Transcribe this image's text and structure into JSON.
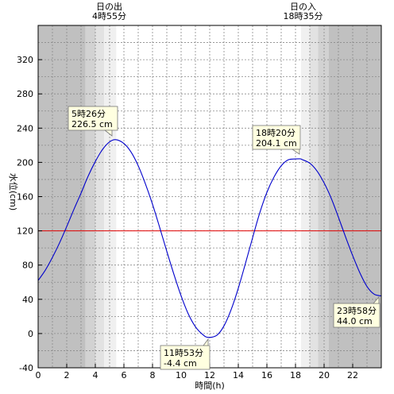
{
  "chart_data": {
    "type": "line",
    "xlabel": "時間(h)",
    "ylabel": "水位(cm)",
    "xlim": [
      0,
      24
    ],
    "ylim": [
      -40,
      360
    ],
    "xticks": [
      0,
      2,
      4,
      6,
      8,
      10,
      12,
      14,
      16,
      18,
      20,
      22
    ],
    "yticks": [
      -40,
      0,
      40,
      80,
      120,
      160,
      200,
      240,
      280,
      320
    ],
    "grid": true,
    "sunrise": {
      "label": "日の出",
      "time": "4時55分",
      "hour": 4.9167
    },
    "sunset": {
      "label": "日の入",
      "time": "18時35分",
      "hour": 18.5833
    },
    "reference_line": {
      "y": 120,
      "color": "#e00000"
    },
    "series": [
      {
        "color": "#0000cc",
        "x": [
          0,
          0.5,
          1,
          1.5,
          2,
          2.5,
          3,
          3.5,
          4,
          4.5,
          5,
          5.43,
          6,
          6.5,
          7,
          7.5,
          8,
          8.5,
          9,
          9.5,
          10,
          10.5,
          11,
          11.5,
          11.88,
          12.5,
          13,
          13.5,
          14,
          14.5,
          15,
          15.5,
          16,
          16.5,
          17,
          17.5,
          18,
          18.33,
          18.5,
          19,
          19.5,
          20,
          20.5,
          21,
          21.5,
          22,
          22.5,
          23,
          23.5,
          24
        ],
        "y": [
          62,
          74,
          89,
          106,
          125,
          145,
          164,
          184,
          201,
          215,
          224,
          226.5,
          222,
          212,
          196,
          175,
          151,
          124,
          96,
          69,
          44,
          23,
          8,
          -1,
          -4.4,
          -2,
          9,
          28,
          53,
          82,
          112,
          141,
          165,
          183,
          196,
          203,
          204,
          204.1,
          203,
          199,
          190,
          176,
          158,
          136,
          113,
          91,
          71,
          55,
          46,
          44
        ]
      }
    ],
    "annotations": [
      {
        "time": "5時26分",
        "value": "226.5 cm"
      },
      {
        "time": "11時53分",
        "value": "-4.4 cm"
      },
      {
        "time": "18時20分",
        "value": "204.1 cm"
      },
      {
        "time": "23時58分",
        "value": "44.0 cm"
      }
    ]
  }
}
